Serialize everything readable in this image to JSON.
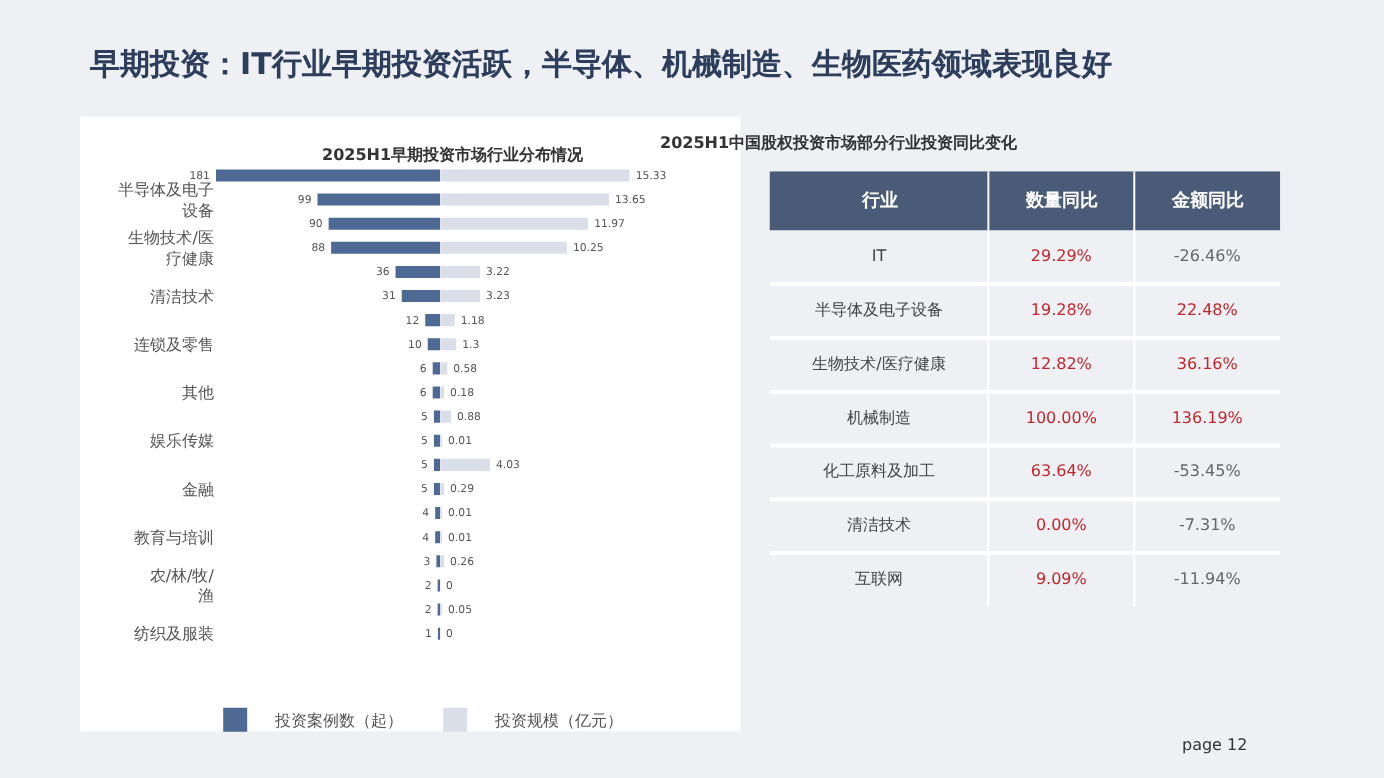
{
  "chart_data": [
    {
      "type": "bar",
      "orientation": "horizontal",
      "title": "2025H1早期投资市场行业分布情况",
      "categories": [
        null,
        "半导体及电子设备",
        null,
        "生物技术/医疗健康",
        null,
        "清洁技术",
        null,
        "连锁及零售",
        null,
        "其他",
        null,
        "娱乐传媒",
        null,
        "金融",
        null,
        "教育与培训",
        null,
        "农/林/牧/渔",
        null,
        "纺织及服装"
      ],
      "series": [
        {
          "name": "投资案例数（起）",
          "color": "#4e6a94",
          "values": [
            181,
            99,
            90,
            88,
            36,
            31,
            12,
            10,
            6,
            6,
            5,
            5,
            5,
            5,
            4,
            4,
            3,
            2,
            2,
            1
          ]
        }
      ],
      "xlim": [
        181,
        0
      ],
      "data_labels": true,
      "legend": "bottom",
      "grid": false,
      "tick_labels": "y",
      "annotations": [
        "早期投资：IT行业早期投资活跃，半导体、机械制造、生物医药领域表现良好",
        "page 12"
      ]
    },
    {
      "type": "bar",
      "orientation": "horizontal",
      "categories": [
        null,
        "半导体及电子设备",
        null,
        "生物技术/医疗健康",
        null,
        "清洁技术",
        null,
        "连锁及零售",
        null,
        "其他",
        null,
        "娱乐传媒",
        null,
        "金融",
        null,
        "教育与培训",
        null,
        "农/林/牧/渔",
        null,
        "纺织及服装"
      ],
      "series": [
        {
          "name": "投资规模（亿元）",
          "color": "#d9dee8",
          "values": [
            15.33,
            13.65,
            11.97,
            10.25,
            3.22,
            3.23,
            1.18,
            1.3,
            0.58,
            0.18,
            0.88,
            0.01,
            4.03,
            0.29,
            0.01,
            0.01,
            0.26,
            0,
            0.05,
            0
          ]
        }
      ],
      "xlim": [
        0,
        15.33
      ],
      "data_labels": true,
      "legend": "bottom",
      "grid": false,
      "tick_labels": false
    },
    {
      "type": "other",
      "title": "2025H1中国股权投资市场部分行业投资同比变化",
      "xlabel": "行业",
      "categories": [
        "IT",
        "半导体及电子设备",
        "生物技术/医疗健康",
        "机械制造",
        "化工原料及加工",
        "清洁技术",
        "互联网"
      ],
      "series": [
        {
          "name": "数量同比",
          "colors": [
            "#c0272d",
            "#c0272d",
            "#c0272d",
            "#c0272d",
            "#c0272d",
            "#c0272d",
            "#c0272d"
          ],
          "values": [
            29.29,
            19.28,
            12.82,
            100.0,
            63.64,
            0.0,
            9.09
          ],
          "value_labels": [
            "29.29%",
            "19.28%",
            "12.82%",
            "100.00%",
            "63.64%",
            "0.00%",
            "9.09%"
          ]
        },
        {
          "name": "金额同比",
          "colors": [
            "#666666",
            "#c0272d",
            "#c0272d",
            "#c0272d",
            "#666666",
            "#666666",
            "#666666"
          ],
          "values": [
            -26.46,
            22.48,
            36.16,
            136.19,
            -53.45,
            -7.31,
            -11.94
          ],
          "value_labels": [
            "-26.46%",
            "22.48%",
            "36.16%",
            "136.19%",
            "-53.45%",
            "-7.31%",
            "-11.94%"
          ]
        }
      ]
    }
  ]
}
